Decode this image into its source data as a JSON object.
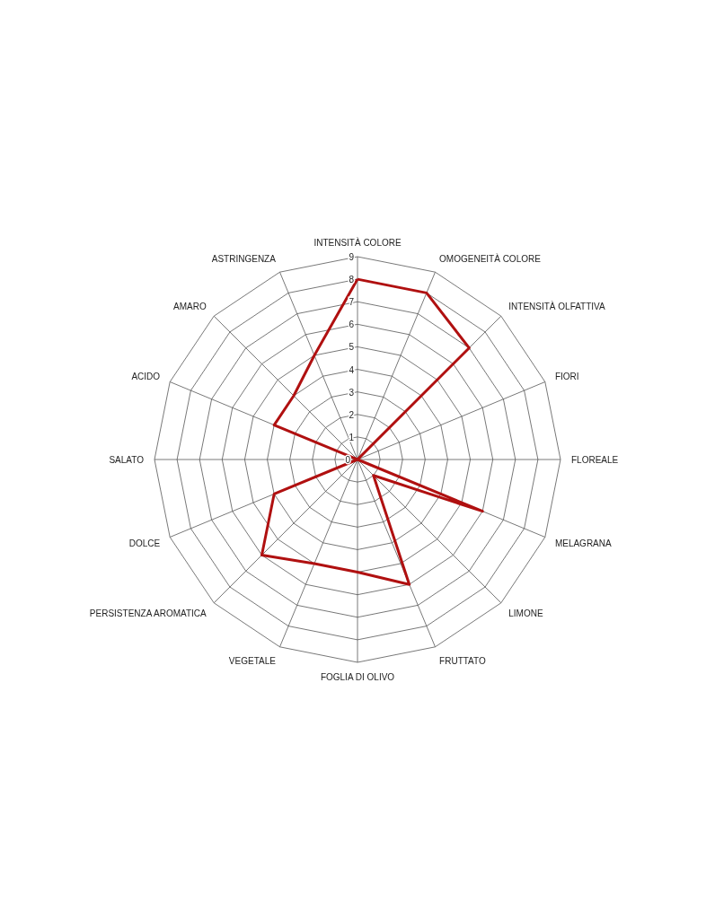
{
  "chart_data": {
    "type": "radar",
    "categories": [
      "INTENSITÀ COLORE",
      "OMOGENEITÀ COLORE",
      "INTENSITÀ OLFATTIVA",
      "FIORI",
      "FLOREALE",
      "MELAGRANA",
      "LIMONE",
      "FRUTTATO",
      "FOGLIA DI OLIVO",
      "VEGETALE",
      "PERSISTENZA AROMATICA",
      "DOLCE",
      "SALATO",
      "ACIDO",
      "AMARO",
      "ASTRINGENZA"
    ],
    "series": [
      {
        "color": "#b01010",
        "values": [
          8,
          8,
          7,
          0,
          0,
          6,
          1,
          6,
          5,
          5,
          6,
          4,
          0,
          4,
          4,
          5
        ]
      }
    ],
    "ylim": [
      0,
      9
    ],
    "yticks": [
      0,
      1,
      2,
      3,
      4,
      5,
      6,
      7,
      8,
      9
    ],
    "grid": true,
    "marker": "none",
    "line_style": "solid"
  }
}
